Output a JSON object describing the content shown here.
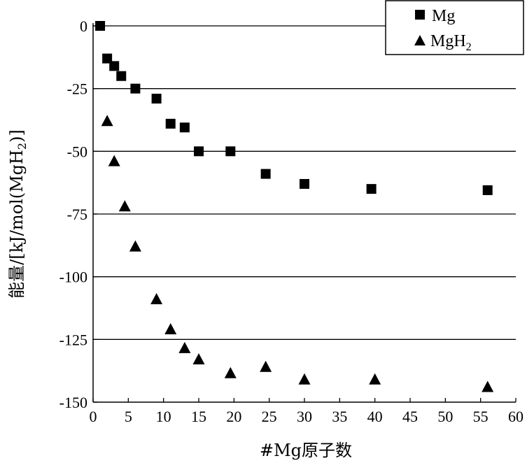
{
  "chart_data": {
    "type": "scatter",
    "title": "",
    "xlabel": "#Mg原子数",
    "ylabel": "能量/[kJ/mol(MgH2)]",
    "ylabel_parts": {
      "before": "能量/[kJ/mol(MgH",
      "sub": "2",
      "after": ")]"
    },
    "xlim": [
      0,
      60
    ],
    "ylim": [
      -150,
      0
    ],
    "xticks": [
      0,
      5,
      10,
      15,
      20,
      25,
      30,
      35,
      40,
      45,
      50,
      55,
      60
    ],
    "yticks": [
      0,
      -25,
      -50,
      -75,
      -100,
      -125,
      -150
    ],
    "ytick_labels": [
      "0",
      "-25",
      "-50",
      "-75",
      "-100",
      "-125",
      "-150"
    ],
    "grid": "horizontal",
    "legend_position": "top-right",
    "series": [
      {
        "name": "Mg",
        "marker": "square",
        "x": [
          1,
          2,
          3,
          4,
          6,
          9,
          11,
          13,
          15,
          19.5,
          24.5,
          30,
          39.5,
          56
        ],
        "y": [
          0,
          -13,
          -16,
          -20,
          -25,
          -29,
          -39,
          -40.5,
          -50,
          -50,
          -59,
          -63,
          -65,
          -65.5
        ]
      },
      {
        "name": "MgH2",
        "name_parts": {
          "base": "MgH",
          "sub": "2"
        },
        "marker": "triangle",
        "x": [
          2,
          3,
          4.5,
          6,
          9,
          11,
          13,
          15,
          19.5,
          24.5,
          30,
          40,
          56
        ],
        "y": [
          -38,
          -54,
          -72,
          -88,
          -109,
          -121,
          -128.5,
          -133,
          -138.5,
          -136,
          -141,
          -141,
          -144
        ]
      }
    ]
  }
}
